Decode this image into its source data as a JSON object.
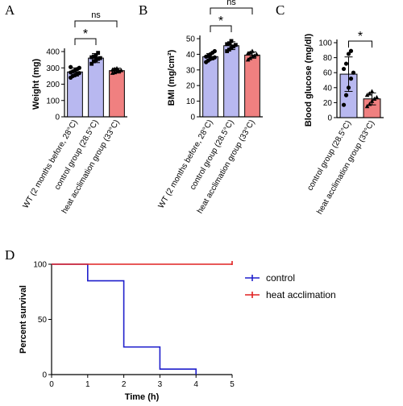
{
  "chart_data": [
    {
      "panel": "A",
      "type": "bar",
      "ylabel": "Weight (mg)",
      "ylim": [
        0,
        400
      ],
      "yticks": [
        "0",
        "100",
        "200",
        "300",
        "400"
      ],
      "categories": [
        "WT (2 months before, 28°C)",
        "control group (28.5°C)",
        "heat acclimation group (33°C)"
      ],
      "values": [
        275,
        360,
        283
      ],
      "errors": [
        25,
        28,
        15
      ],
      "colors": [
        "#b8b8f0",
        "#b8b8f0",
        "#f08080"
      ],
      "points": [
        [
          240,
          250,
          255,
          262,
          268,
          272,
          278,
          285,
          292,
          300,
          305
        ],
        [
          325,
          340,
          348,
          355,
          360,
          365,
          370,
          378,
          392
        ],
        [
          268,
          272,
          278,
          282,
          285,
          288,
          292,
          296
        ]
      ],
      "significance": [
        {
          "from": 0,
          "to": 1,
          "label": "*"
        },
        {
          "from": 0,
          "to": 2,
          "label": "ns"
        }
      ]
    },
    {
      "panel": "B",
      "type": "bar",
      "ylabel": "BMI (mg/cm²)",
      "ylim": [
        0,
        50
      ],
      "yticks": [
        "0",
        "10",
        "20",
        "30",
        "40",
        "50"
      ],
      "categories": [
        "WT (2 months before, 28°C)",
        "control group (28.5°C)",
        "heat acclimation group (33°C)"
      ],
      "values": [
        38.5,
        45.5,
        39.5
      ],
      "errors": [
        2,
        2.5,
        2
      ],
      "colors": [
        "#b8b8f0",
        "#b8b8f0",
        "#f08080"
      ],
      "points": [
        [
          35,
          36,
          37,
          37.5,
          38,
          38.5,
          39,
          40,
          41,
          42
        ],
        [
          42,
          43,
          44,
          45,
          46,
          46.5,
          47,
          48.5
        ],
        [
          36.5,
          37.5,
          38.5,
          39,
          40,
          40.5,
          41,
          42
        ]
      ],
      "significance": [
        {
          "from": 0,
          "to": 1,
          "label": "*"
        },
        {
          "from": 0,
          "to": 2,
          "label": "ns"
        }
      ]
    },
    {
      "panel": "C",
      "type": "bar",
      "ylabel": "Blood glucose (mg/dl)",
      "ylim": [
        0,
        100
      ],
      "yticks": [
        "0",
        "20",
        "40",
        "60",
        "80",
        "100"
      ],
      "categories": [
        "control group (28.5°C)",
        "heat acclimation group (33°C)"
      ],
      "values": [
        58,
        25
      ],
      "errors": [
        23,
        8
      ],
      "colors": [
        "#b8b8f0",
        "#f08080"
      ],
      "points": [
        [
          17,
          30,
          40,
          52,
          60,
          65,
          72,
          85,
          89
        ],
        [
          15,
          18,
          22,
          25,
          27,
          30,
          32,
          35
        ]
      ],
      "significance": [
        {
          "from": 0,
          "to": 1,
          "label": "*"
        }
      ]
    },
    {
      "panel": "D",
      "type": "line",
      "step": true,
      "xlabel": "Time (h)",
      "ylabel": "Percent survival",
      "xlim": [
        0,
        5
      ],
      "ylim": [
        0,
        100
      ],
      "xticks": [
        "0",
        "1",
        "2",
        "3",
        "4",
        "5"
      ],
      "yticks": [
        "0",
        "50",
        "100"
      ],
      "series": [
        {
          "name": "control",
          "color": "#1f1fcc",
          "x": [
            0,
            1,
            2,
            3,
            4
          ],
          "y": [
            100,
            85,
            25,
            5,
            0
          ]
        },
        {
          "name": "heat acclimation",
          "color": "#e02020",
          "x": [
            0,
            5
          ],
          "y": [
            100,
            100
          ]
        }
      ]
    }
  ]
}
